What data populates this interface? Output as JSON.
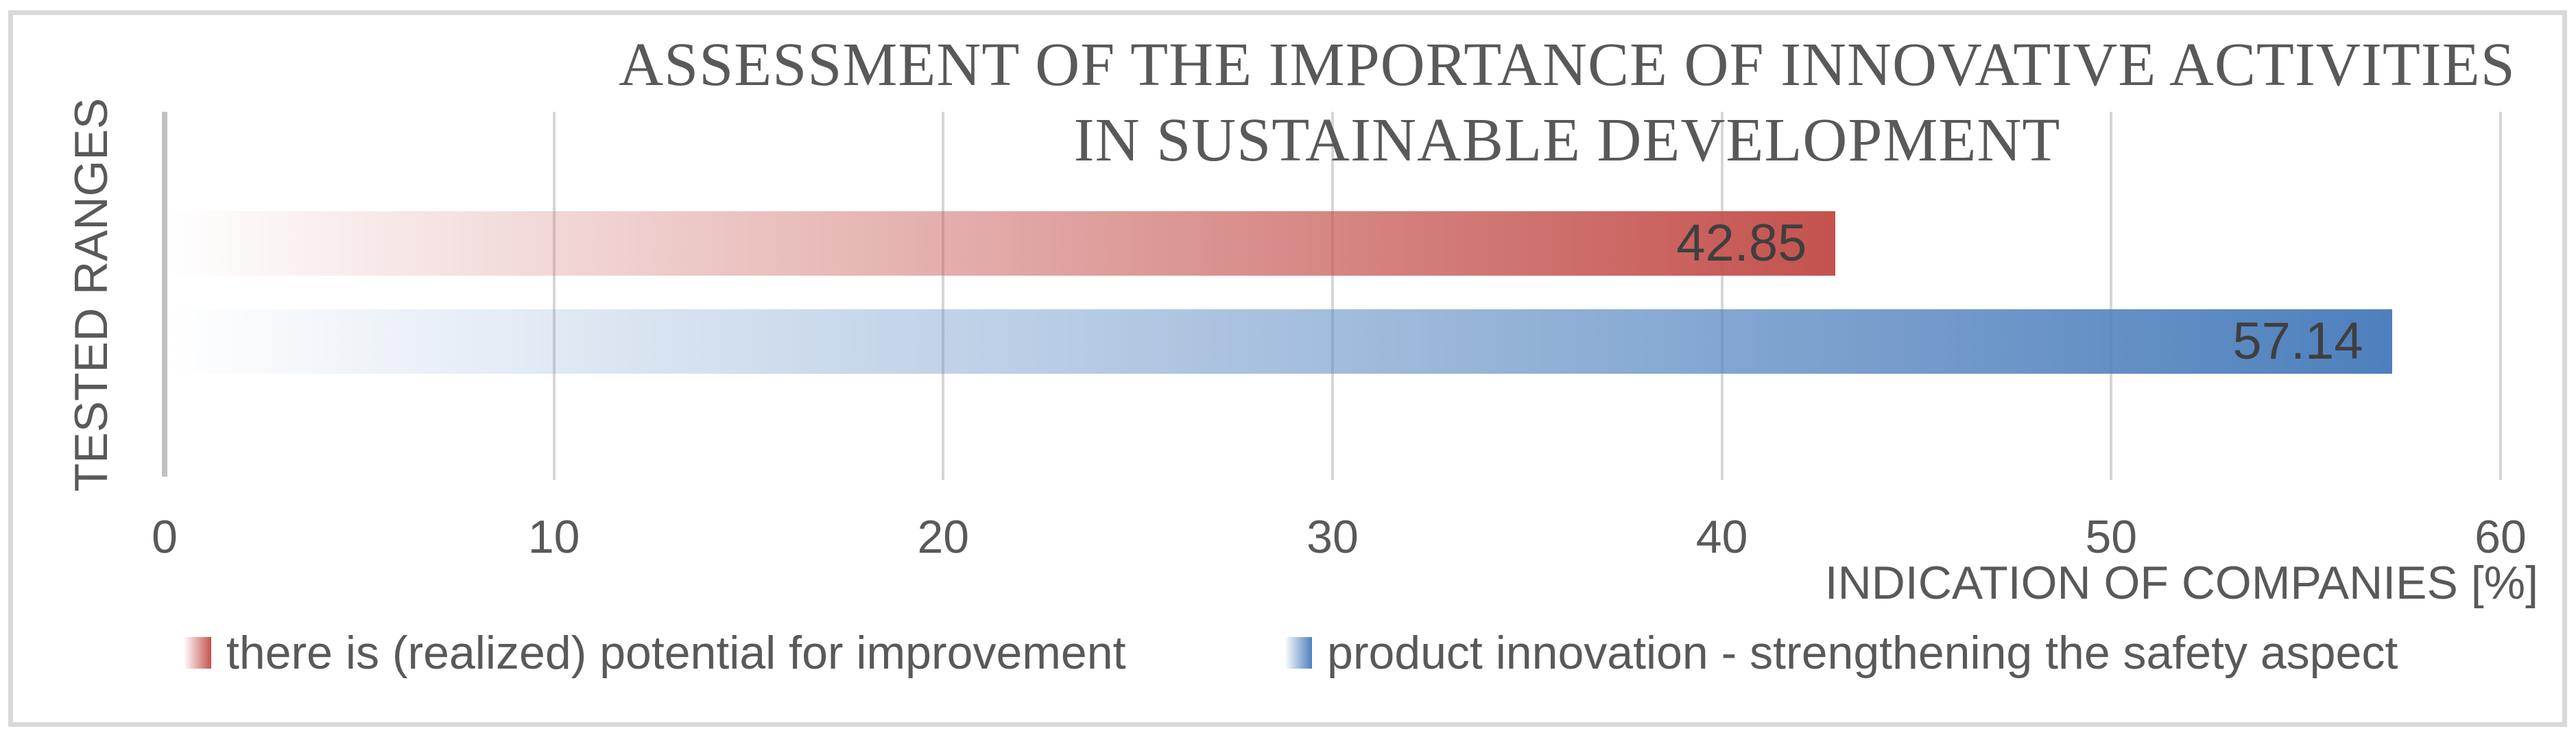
{
  "title": {
    "line1": "ASSESSMENT OF THE IMPORTANCE OF INNOVATIVE ACTIVITIES",
    "line2": "IN SUSTAINABLE DEVELOPMENT"
  },
  "chart_data": {
    "type": "bar",
    "orientation": "horizontal",
    "title": "ASSESSMENT OF THE IMPORTANCE OF INNOVATIVE ACTIVITIES IN SUSTAINABLE DEVELOPMENT",
    "xlabel": "INDICATION OF COMPANIES [%]",
    "ylabel": "TESTED RANGES",
    "xlim": [
      0,
      60
    ],
    "x_ticks": [
      0,
      10,
      20,
      30,
      40,
      50,
      60
    ],
    "grid": true,
    "legend_position": "bottom",
    "bars": [
      {
        "name": "improvement-potential",
        "label": "there is (realized) potential for improvement",
        "value": 42.85,
        "value_label": "42.85",
        "color": "#C4524E"
      },
      {
        "name": "product-innovation",
        "label": "product innovation - strengthening the safety aspect",
        "value": 57.14,
        "value_label": "57.14",
        "color": "#4E80BD"
      }
    ]
  },
  "colors": {
    "title_text": "#595959",
    "axis_text": "#595959",
    "data_label_text": "#3F3F3F",
    "gridline": "#D6D6D6",
    "axis_line": "#C1C1C1",
    "frame_border": "#D9D9D9"
  }
}
